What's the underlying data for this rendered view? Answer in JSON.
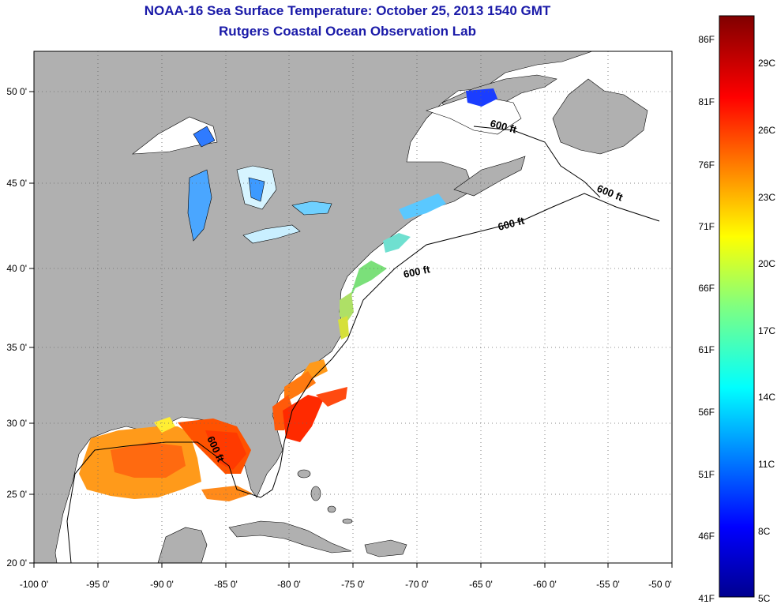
{
  "header": {
    "title": "NOAA-16 Sea Surface Temperature:  October 25, 2013 1540 GMT",
    "subtitle": "Rutgers Coastal Ocean Observation Lab"
  },
  "map": {
    "lon_range": [
      -100,
      -50
    ],
    "lat_range": [
      20,
      52.5
    ],
    "lon_ticks": [
      "-100 0'",
      "-95 0'",
      "-90 0'",
      "-85 0'",
      "-80 0'",
      "-75 0'",
      "-70 0'",
      "-65 0'",
      "-60 0'",
      "-55 0'",
      "-50 0'"
    ],
    "lat_ticks": [
      "20 0'",
      "25 0'",
      "30 0'",
      "35 0'",
      "40 0'",
      "45 0'",
      "50 0'"
    ],
    "grid": "dotted",
    "land_color": "#b0b0b0",
    "ocean_color": "#ffffff",
    "isobath_labels": [
      "600 ft",
      "600 ft",
      "600 ft",
      "600 ft",
      "600 ft"
    ]
  },
  "colorbar": {
    "fahrenheit_labels": [
      "86F",
      "81F",
      "76F",
      "71F",
      "66F",
      "61F",
      "56F",
      "51F",
      "46F",
      "41F"
    ],
    "celsius_labels": [
      "29C",
      "26C",
      "23C",
      "20C",
      "17C",
      "14C",
      "11C",
      "8C",
      "5C"
    ],
    "colormap": "jet",
    "range_c": [
      5,
      31
    ]
  }
}
